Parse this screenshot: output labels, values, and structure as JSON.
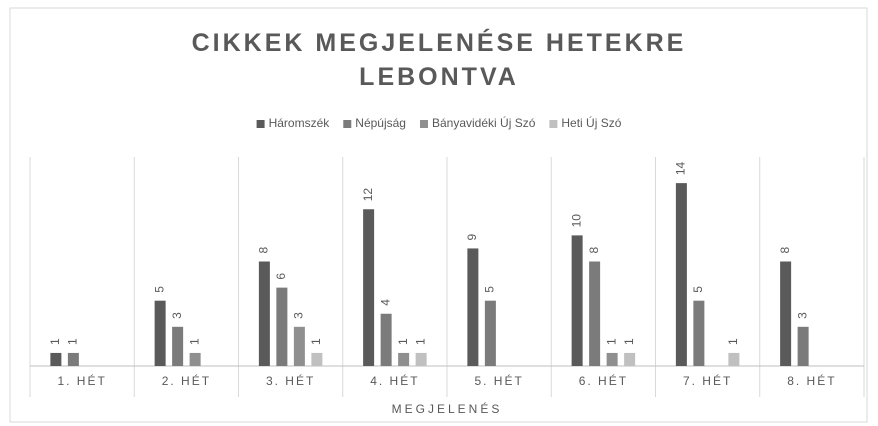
{
  "chart_data": {
    "type": "bar",
    "title": "CIKKEK MEGJELENÉSE HETEKRE LEBONTVA",
    "x_label": "MEGJELENÉS",
    "categories": [
      "1. HÉT",
      "2. HÉT",
      "3. HÉT",
      "4. HÉT",
      "5. HÉT",
      "6. HÉT",
      "7. HÉT",
      "8. HÉT"
    ],
    "series": [
      {
        "name": "Háromszék",
        "color": "#5a5a5a",
        "values": [
          1,
          5,
          8,
          12,
          9,
          10,
          14,
          8
        ]
      },
      {
        "name": "Népújság",
        "color": "#7b7b7b",
        "values": [
          1,
          3,
          6,
          4,
          5,
          8,
          5,
          3
        ]
      },
      {
        "name": "Bányavidéki Új Szó",
        "color": "#8f8f8f",
        "values": [
          null,
          1,
          3,
          1,
          null,
          1,
          null,
          null
        ]
      },
      {
        "name": "Heti Új Szó",
        "color": "#c0c0c0",
        "values": [
          null,
          null,
          1,
          1,
          null,
          1,
          1,
          null
        ]
      }
    ],
    "ylim": [
      0,
      16
    ],
    "legend": "top"
  }
}
